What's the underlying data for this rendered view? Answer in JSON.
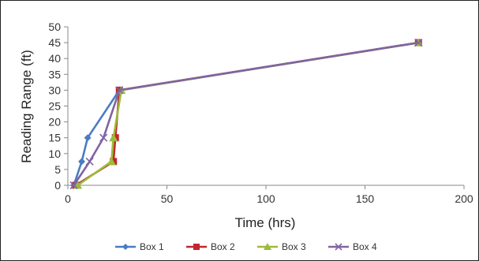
{
  "chart_data": {
    "type": "line",
    "title": "",
    "xlabel": "Time (hrs)",
    "ylabel": "Reading Range (ft)",
    "xlim": [
      0,
      200
    ],
    "ylim": [
      0,
      50
    ],
    "x_ticks": [
      0,
      50,
      100,
      150,
      200
    ],
    "y_ticks": [
      0,
      5,
      10,
      15,
      20,
      25,
      30,
      35,
      40,
      45,
      50
    ],
    "grid": false,
    "legend_position": "bottom",
    "series": [
      {
        "name": "Box 1",
        "color": "#4a7cc2",
        "marker": "diamond",
        "x": [
          3,
          7,
          10,
          26,
          177
        ],
        "y": [
          0,
          7.5,
          15,
          30,
          45
        ]
      },
      {
        "name": "Box 2",
        "color": "#c0282d",
        "marker": "square",
        "x": [
          4,
          23,
          24,
          26,
          177
        ],
        "y": [
          0,
          7.5,
          15,
          30,
          45
        ]
      },
      {
        "name": "Box 3",
        "color": "#9bbb3c",
        "marker": "triangle",
        "x": [
          5,
          22,
          23,
          27,
          177
        ],
        "y": [
          0,
          7.5,
          15,
          30,
          45
        ]
      },
      {
        "name": "Box 4",
        "color": "#8064a2",
        "marker": "x",
        "x": [
          3,
          11,
          18,
          26,
          177
        ],
        "y": [
          0,
          7.5,
          15,
          30,
          45
        ]
      }
    ]
  }
}
